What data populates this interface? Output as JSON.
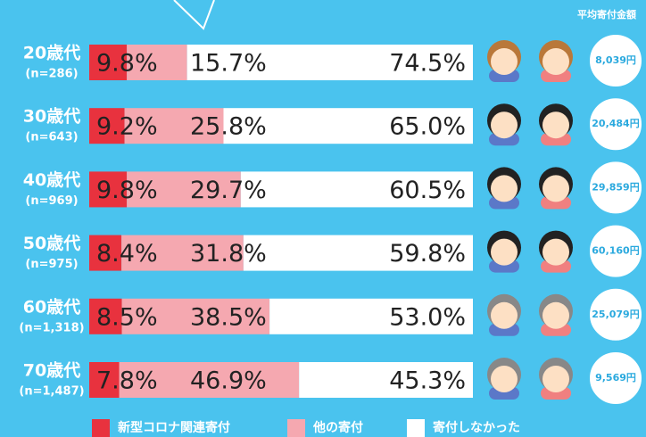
{
  "chart_data": {
    "type": "stacked-bar-horizontal",
    "header": "平均寄付金額",
    "categories": [
      "20歳代",
      "30歳代",
      "40歳代",
      "50歳代",
      "60歳代",
      "70歳代"
    ],
    "sample_sizes": [
      "(n=286)",
      "(n=643)",
      "(n=969)",
      "(n=975)",
      "(n=1,318)",
      "(n=1,487)"
    ],
    "average_donations": [
      "8,039円",
      "20,484円",
      "29,859円",
      "60,160円",
      "25,079円",
      "9,569円"
    ],
    "series": [
      {
        "name": "新型コロナ関連寄付",
        "color": "#e8323e",
        "values": [
          9.8,
          9.2,
          9.8,
          8.4,
          8.5,
          7.8
        ],
        "value_labels": [
          "9.8%",
          "9.2%",
          "9.8%",
          "8.4%",
          "8.5%",
          "7.8%"
        ]
      },
      {
        "name": "他の寄付",
        "color": "#f5a8b0",
        "values": [
          15.7,
          25.8,
          29.7,
          31.8,
          38.5,
          46.9
        ],
        "value_labels": [
          "15.7%",
          "25.8%",
          "29.7%",
          "31.8%",
          "38.5%",
          "46.9%"
        ]
      },
      {
        "name": "寄付しなかった",
        "color": "#ffffff",
        "values": [
          74.5,
          65.0,
          60.5,
          59.8,
          53.0,
          45.3
        ],
        "value_labels": [
          "74.5%",
          "65.0%",
          "60.5%",
          "59.8%",
          "53.0%",
          "45.3%"
        ]
      }
    ]
  }
}
